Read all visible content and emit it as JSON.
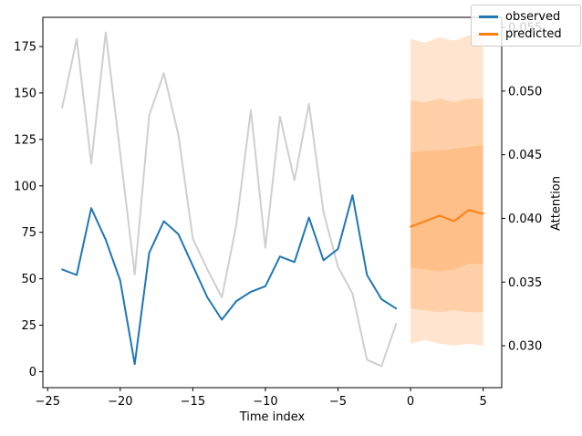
{
  "figure": {
    "background": "#ffffff"
  },
  "legend": {
    "items": [
      {
        "label": "observed",
        "color": "#1f77b4"
      },
      {
        "label": "predicted",
        "color": "#ff7f0e"
      }
    ]
  },
  "chart_data": {
    "type": "line",
    "title": "",
    "xlabel": "Time index",
    "ylabel_left": "",
    "ylabel_right": "Attention",
    "grid": false,
    "legend_position": "upper right",
    "axes": {
      "xlim": [
        -25.33,
        6.28
      ],
      "ylim_left": [
        -8.6,
        190.7
      ],
      "ylim_right": [
        0.02671,
        0.05579
      ],
      "xticks": [
        {
          "v": -25,
          "label": "−25"
        },
        {
          "v": -20,
          "label": "−20"
        },
        {
          "v": -15,
          "label": "−15"
        },
        {
          "v": -10,
          "label": "−10"
        },
        {
          "v": -5,
          "label": "−5"
        },
        {
          "v": 0,
          "label": "0"
        },
        {
          "v": 5,
          "label": "5"
        }
      ],
      "yticks_left": [
        {
          "v": 0,
          "label": "0"
        },
        {
          "v": 25,
          "label": "25"
        },
        {
          "v": 50,
          "label": "50"
        },
        {
          "v": 75,
          "label": "75"
        },
        {
          "v": 100,
          "label": "100"
        },
        {
          "v": 125,
          "label": "125"
        },
        {
          "v": 150,
          "label": "150"
        },
        {
          "v": 175,
          "label": "175"
        }
      ],
      "yticks_right": [
        {
          "v": 0.03,
          "label": "0.030"
        },
        {
          "v": 0.035,
          "label": "0.035"
        },
        {
          "v": 0.04,
          "label": "0.040"
        },
        {
          "v": 0.045,
          "label": "0.045"
        },
        {
          "v": 0.05,
          "label": "0.050"
        },
        {
          "v": 0.055,
          "label": "0.055"
        }
      ]
    },
    "series": [
      {
        "name": "attention",
        "axis": "right",
        "color": "#cfcfcf",
        "width": 2,
        "x": [
          -24,
          -23,
          -22,
          -21,
          -20,
          -19,
          -18,
          -17,
          -16,
          -15,
          -14,
          -13,
          -12,
          -11,
          -10,
          -9,
          -8,
          -7,
          -6,
          -5,
          -4,
          -3,
          -2,
          -1
        ],
        "values": [
          0.0487,
          0.0541,
          0.0443,
          0.0546,
          0.0451,
          0.0356,
          0.0481,
          0.0514,
          0.0466,
          0.0384,
          0.036,
          0.0338,
          0.0395,
          0.0485,
          0.0377,
          0.048,
          0.043,
          0.049,
          0.0405,
          0.0362,
          0.0341,
          0.0289,
          0.0284,
          0.0317
        ]
      },
      {
        "name": "observed",
        "axis": "left",
        "color": "#1f77b4",
        "width": 2,
        "x": [
          -24,
          -23,
          -22,
          -21,
          -20,
          -19,
          -18,
          -17,
          -16,
          -15,
          -14,
          -13,
          -12,
          -11,
          -10,
          -9,
          -8,
          -7,
          -6,
          -5,
          -4,
          -3,
          -2,
          -1
        ],
        "values": [
          55,
          52,
          88,
          71,
          49,
          4,
          64,
          81,
          74,
          57,
          40,
          28,
          38,
          43,
          46,
          62,
          59,
          83,
          60,
          66,
          95,
          52,
          39,
          34
        ]
      },
      {
        "name": "predicted",
        "axis": "left",
        "color": "#ff7f0e",
        "width": 2,
        "x": [
          0,
          1,
          2,
          3,
          4,
          5
        ],
        "values": [
          78,
          81,
          84,
          81,
          87,
          85
        ]
      }
    ],
    "bands": {
      "color": "#ff7f0e",
      "alpha": 0.2,
      "axis": "left",
      "x": [
        0,
        1,
        2,
        3,
        4,
        5
      ],
      "levels": [
        {
          "name": "outer",
          "upper": [
            179,
            177,
            180,
            178,
            181,
            182
          ],
          "lower": [
            15,
            17,
            15,
            14,
            15,
            14
          ]
        },
        {
          "name": "middle",
          "upper": [
            146,
            145,
            147,
            145,
            147,
            147
          ],
          "lower": [
            34,
            33,
            32,
            33,
            32,
            32
          ]
        },
        {
          "name": "inner",
          "upper": [
            118,
            119,
            119,
            120,
            121,
            122
          ],
          "lower": [
            56,
            55,
            54,
            55,
            58,
            58
          ]
        }
      ]
    }
  }
}
